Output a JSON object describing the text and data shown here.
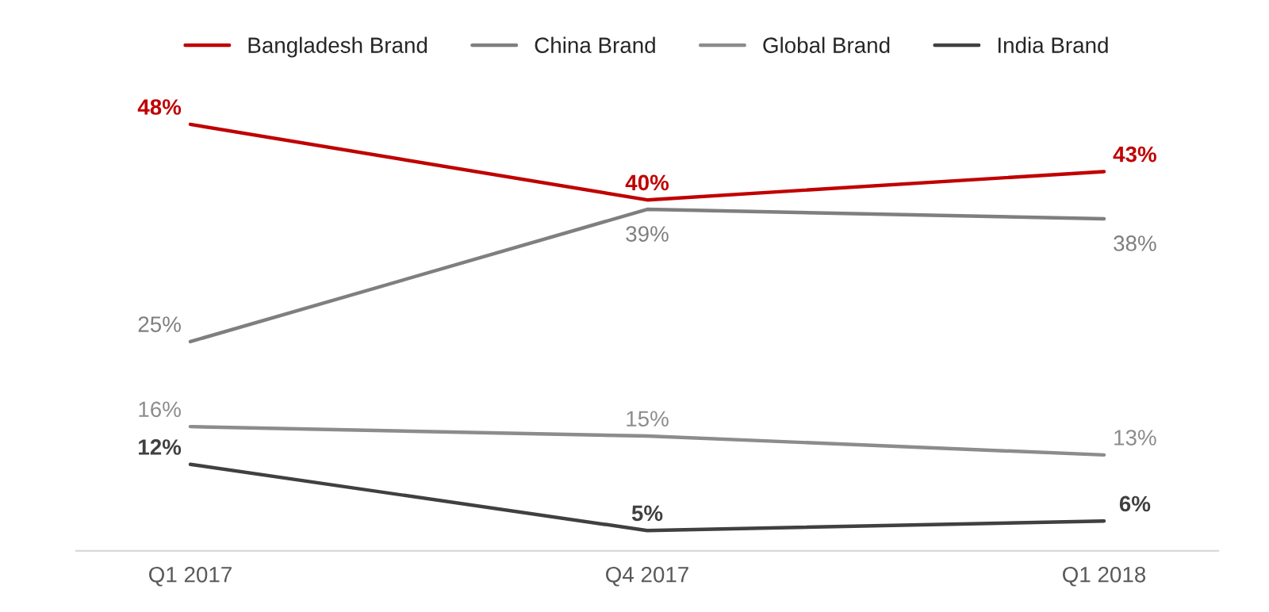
{
  "chart_data": {
    "type": "line",
    "categories": [
      "Q1 2017",
      "Q4 2017",
      "Q1 2018"
    ],
    "series": [
      {
        "name": "Bangladesh Brand",
        "color": "#c00000",
        "values": [
          48,
          40,
          43
        ],
        "value_labels": [
          "48%",
          "40%",
          "43%"
        ]
      },
      {
        "name": "China Brand",
        "color": "#7f7f7f",
        "values": [
          25,
          39,
          38
        ],
        "value_labels": [
          "25%",
          "39%",
          "38%"
        ]
      },
      {
        "name": "Global Brand",
        "color": "#8c8c8c",
        "values": [
          16,
          15,
          13
        ],
        "value_labels": [
          "16%",
          "15%",
          "13%"
        ]
      },
      {
        "name": "India Brand",
        "color": "#404040",
        "values": [
          12,
          5,
          6
        ],
        "value_labels": [
          "12%",
          "5%",
          "6%"
        ]
      }
    ],
    "legend": "top",
    "grid": false,
    "marker": "none",
    "tick_labels": "x"
  }
}
